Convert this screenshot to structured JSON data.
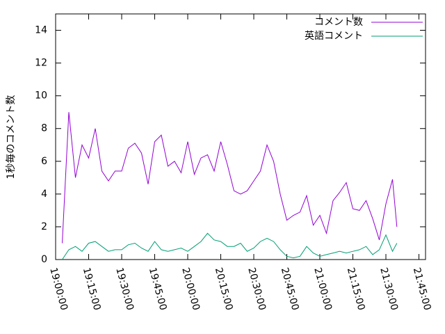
{
  "chart_data": {
    "type": "line",
    "y_label": "1秒毎のコメント数",
    "x": [
      "19:03:00",
      "19:06:00",
      "19:09:00",
      "19:12:00",
      "19:15:00",
      "19:18:00",
      "19:21:00",
      "19:24:00",
      "19:27:00",
      "19:30:00",
      "19:33:00",
      "19:36:00",
      "19:39:00",
      "19:42:00",
      "19:45:00",
      "19:48:00",
      "19:51:00",
      "19:54:00",
      "19:57:00",
      "20:00:00",
      "20:03:00",
      "20:06:00",
      "20:09:00",
      "20:12:00",
      "20:15:00",
      "20:18:00",
      "20:21:00",
      "20:24:00",
      "20:27:00",
      "20:30:00",
      "20:33:00",
      "20:36:00",
      "20:39:00",
      "20:42:00",
      "20:45:00",
      "20:48:00",
      "20:51:00",
      "20:54:00",
      "20:57:00",
      "21:00:00",
      "21:03:00",
      "21:06:00",
      "21:09:00",
      "21:12:00",
      "21:15:00",
      "21:18:00",
      "21:21:00",
      "21:24:00",
      "21:27:00",
      "21:30:00",
      "21:33:00",
      "21:35:00"
    ],
    "series": [
      {
        "name": "コメント数",
        "color": "#9400d3",
        "values": [
          1.0,
          9.0,
          5.0,
          7.0,
          6.2,
          8.0,
          5.4,
          4.8,
          5.4,
          5.4,
          6.8,
          7.1,
          6.5,
          4.6,
          7.2,
          7.6,
          5.7,
          6.0,
          5.3,
          7.2,
          5.2,
          6.2,
          6.4,
          5.4,
          7.2,
          5.8,
          4.2,
          4.0,
          4.2,
          4.8,
          5.4,
          7.0,
          6.0,
          4.0,
          2.4,
          2.7,
          2.9,
          3.9,
          2.1,
          2.7,
          1.6,
          3.6,
          4.1,
          4.7,
          3.1,
          3.0,
          3.6,
          2.5,
          1.2,
          3.4,
          4.9,
          2.0
        ]
      },
      {
        "name": "英語コメント",
        "color": "#009e73",
        "values": [
          0.0,
          0.6,
          0.8,
          0.5,
          1.0,
          1.1,
          0.8,
          0.5,
          0.6,
          0.6,
          0.9,
          1.0,
          0.7,
          0.5,
          1.1,
          0.6,
          0.5,
          0.6,
          0.7,
          0.5,
          0.8,
          1.1,
          1.6,
          1.2,
          1.1,
          0.8,
          0.8,
          1.0,
          0.5,
          0.7,
          1.1,
          1.3,
          1.1,
          0.6,
          0.2,
          0.1,
          0.2,
          0.8,
          0.4,
          0.2,
          0.3,
          0.4,
          0.5,
          0.4,
          0.5,
          0.6,
          0.8,
          0.3,
          0.6,
          1.5,
          0.5,
          1.0
        ]
      }
    ],
    "xlim": [
      "19:00:00",
      "21:48:00"
    ],
    "xticks": [
      "19:00:00",
      "19:15:00",
      "19:30:00",
      "19:45:00",
      "20:00:00",
      "20:15:00",
      "20:30:00",
      "20:45:00",
      "21:00:00",
      "21:15:00",
      "21:30:00",
      "21:45:00"
    ],
    "ylim": [
      0,
      15
    ],
    "yticks": [
      0,
      2,
      4,
      6,
      8,
      10,
      12,
      14
    ],
    "legend": "top-right"
  }
}
